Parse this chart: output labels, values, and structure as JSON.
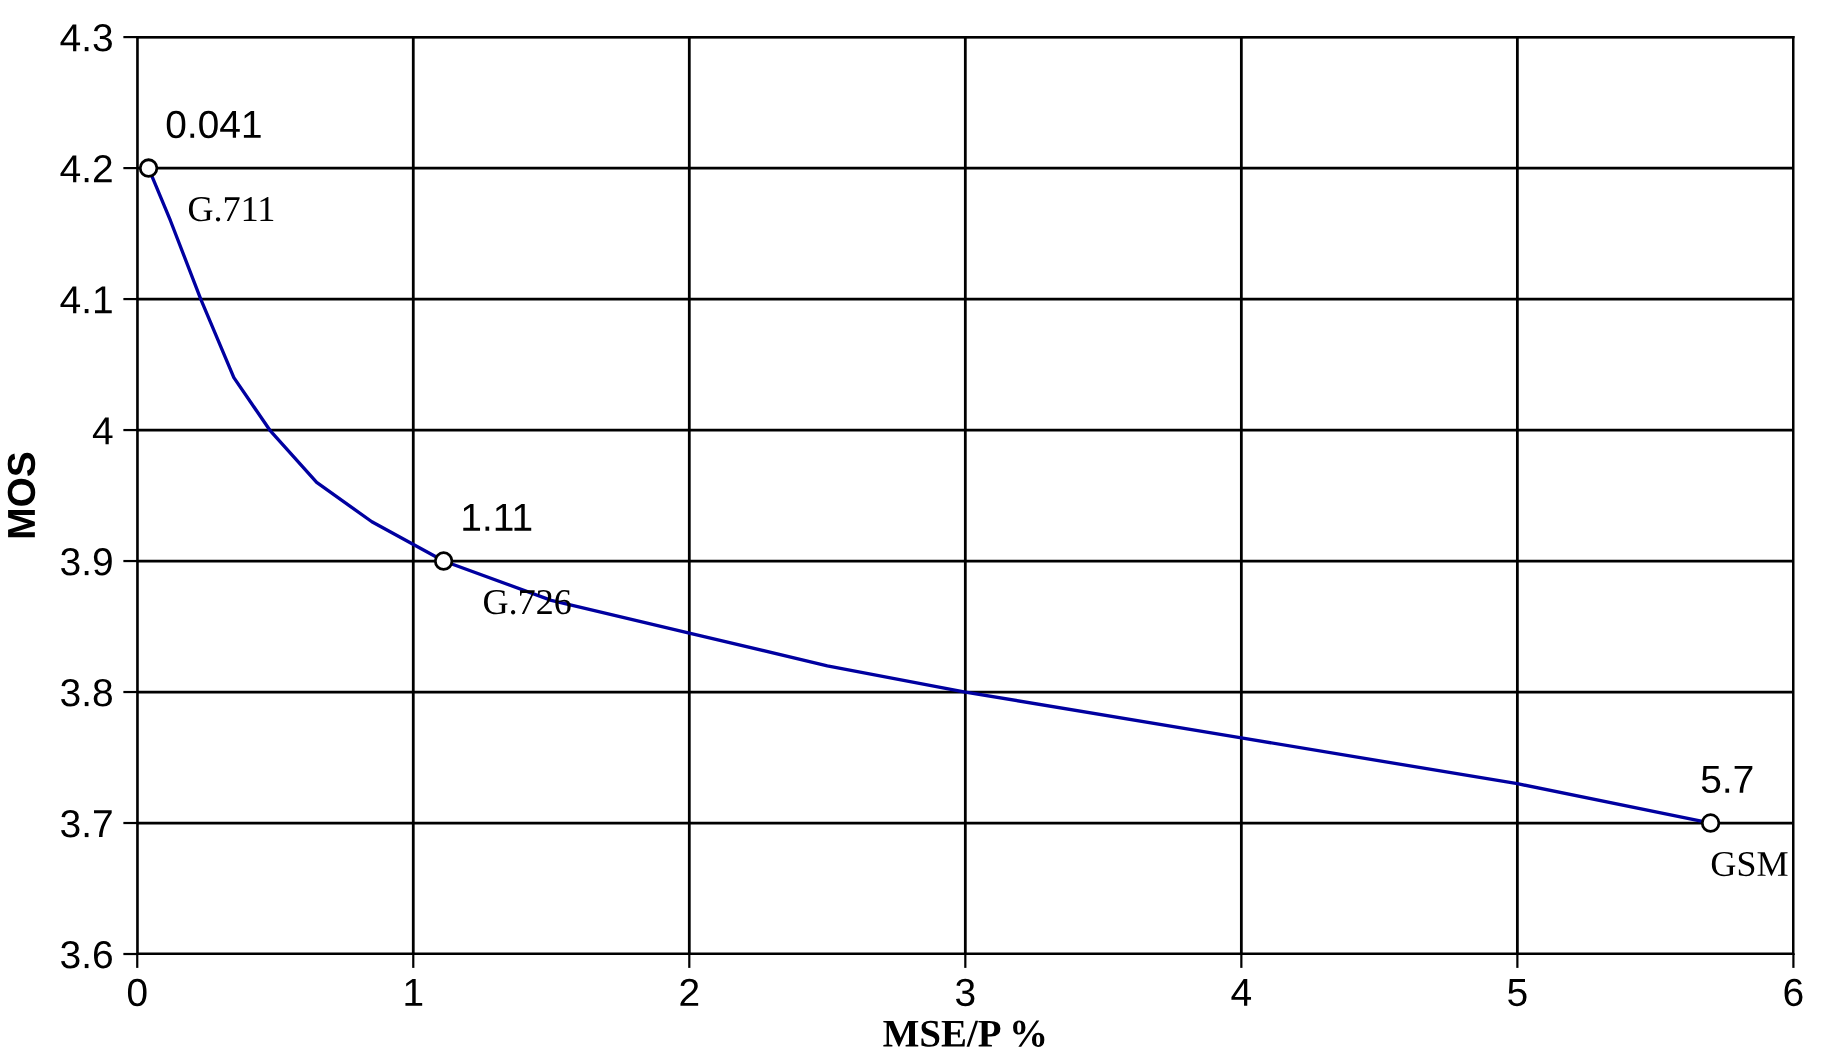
{
  "chart_data": {
    "type": "line",
    "xlabel": "MSE/P %",
    "ylabel": "MOS",
    "series": [
      {
        "x": [
          0.041,
          0.12,
          0.23,
          0.35,
          0.48,
          0.65,
          0.85,
          1.11,
          1.5,
          2,
          2.5,
          3,
          4,
          5,
          5.7
        ],
        "values": [
          4.2,
          4.16,
          4.1,
          4.04,
          4.0,
          3.96,
          3.93,
          3.9,
          3.87,
          3.845,
          3.82,
          3.8,
          3.765,
          3.73,
          3.7
        ],
        "color": "#0000a0",
        "marker": "none"
      },
      {
        "type": "scatter",
        "x": [
          0.041,
          1.11,
          5.7
        ],
        "values": [
          4.2,
          3.9,
          3.7
        ],
        "color": "#000000"
      }
    ],
    "marker": "circle",
    "line_style": "solid",
    "grid": true,
    "xlim": [
      0,
      6
    ],
    "xticks": [
      0,
      1,
      2,
      3,
      4,
      5,
      6
    ],
    "ylim": [
      3.6,
      4.3
    ],
    "yticks": [
      3.6,
      3.7,
      3.8,
      3.9,
      4,
      4.1,
      4.2,
      4.3
    ],
    "annotations": [
      {
        "text": "0.041",
        "x": 0.041,
        "y": 4.2
      },
      {
        "text": "G.711",
        "x": 0.041,
        "y": 4.2
      },
      {
        "text": "1.11",
        "x": 1.11,
        "y": 3.9
      },
      {
        "text": "G.726",
        "x": 1.11,
        "y": 3.9
      },
      {
        "text": "5.7",
        "x": 5.7,
        "y": 3.7
      },
      {
        "text": "GSM",
        "x": 5.7,
        "y": 3.7
      }
    ]
  }
}
